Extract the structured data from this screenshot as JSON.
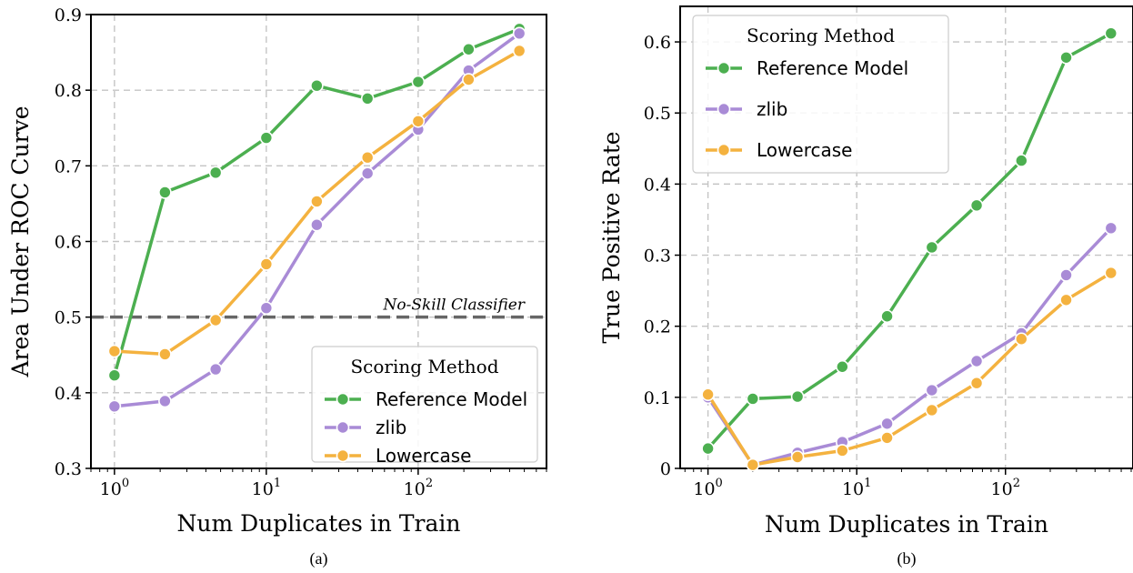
{
  "chart_data": [
    {
      "type": "line",
      "caption": "(a)",
      "xlabel": "Num Duplicates in Train",
      "ylabel": "Area Under ROC Curve",
      "xscale": "log",
      "xlim": [
        0.7,
        700
      ],
      "ylim": [
        0.3,
        0.9
      ],
      "xticks": [
        {
          "value": 1,
          "base": "10",
          "exp": "0"
        },
        {
          "value": 10,
          "base": "10",
          "exp": "1"
        },
        {
          "value": 100,
          "base": "10",
          "exp": "2"
        }
      ],
      "yticks": [
        {
          "value": 0.3,
          "label": "0.3"
        },
        {
          "value": 0.4,
          "label": "0.4"
        },
        {
          "value": 0.5,
          "label": "0.5"
        },
        {
          "value": 0.6,
          "label": "0.6"
        },
        {
          "value": 0.7,
          "label": "0.7"
        },
        {
          "value": 0.8,
          "label": "0.8"
        },
        {
          "value": 0.9,
          "label": "0.9"
        }
      ],
      "grid": true,
      "reference_line": {
        "y": 0.5,
        "label": "No-Skill Classifier",
        "color": "#666666"
      },
      "legend": {
        "title": "Scoring Method",
        "position": "lower-right"
      },
      "x": [
        1,
        2.15,
        4.64,
        10,
        21.5,
        46.4,
        100,
        215,
        464
      ],
      "series": [
        {
          "name": "Reference Model",
          "color": "#4caf50",
          "values": [
            0.423,
            0.665,
            0.691,
            0.737,
            0.806,
            0.789,
            0.811,
            0.854,
            0.881
          ]
        },
        {
          "name": "zlib",
          "color": "#a98bd6",
          "values": [
            0.382,
            0.389,
            0.431,
            0.512,
            0.622,
            0.69,
            0.748,
            0.826,
            0.875
          ]
        },
        {
          "name": "Lowercase",
          "color": "#f4b23f",
          "values": [
            0.455,
            0.451,
            0.496,
            0.57,
            0.653,
            0.711,
            0.759,
            0.814,
            0.852
          ]
        }
      ]
    },
    {
      "type": "line",
      "caption": "(b)",
      "xlabel": "Num Duplicates in Train",
      "ylabel": "True Positive Rate",
      "xscale": "log",
      "xlim": [
        0.65,
        720
      ],
      "ylim": [
        0,
        0.65
      ],
      "xticks": [
        {
          "value": 1,
          "base": "10",
          "exp": "0"
        },
        {
          "value": 10,
          "base": "10",
          "exp": "1"
        },
        {
          "value": 100,
          "base": "10",
          "exp": "2"
        }
      ],
      "yticks": [
        {
          "value": 0,
          "label": "0"
        },
        {
          "value": 0.1,
          "label": "0.1"
        },
        {
          "value": 0.2,
          "label": "0.2"
        },
        {
          "value": 0.3,
          "label": "0.3"
        },
        {
          "value": 0.4,
          "label": "0.4"
        },
        {
          "value": 0.5,
          "label": "0.5"
        },
        {
          "value": 0.6,
          "label": "0.6"
        }
      ],
      "grid": true,
      "legend": {
        "title": "Scoring Method",
        "position": "upper-left"
      },
      "x": [
        1,
        2,
        4,
        8,
        16,
        32,
        64,
        128,
        256,
        512
      ],
      "series": [
        {
          "name": "Reference Model",
          "color": "#4caf50",
          "values": [
            0.028,
            0.098,
            0.101,
            0.143,
            0.214,
            0.311,
            0.37,
            0.433,
            0.578,
            0.612
          ]
        },
        {
          "name": "zlib",
          "color": "#a98bd6",
          "values": [
            0.1,
            0.005,
            0.022,
            0.037,
            0.063,
            0.11,
            0.151,
            0.19,
            0.272,
            0.338
          ]
        },
        {
          "name": "Lowercase",
          "color": "#f4b23f",
          "values": [
            0.104,
            0.005,
            0.016,
            0.025,
            0.043,
            0.082,
            0.12,
            0.182,
            0.237,
            0.275
          ]
        }
      ]
    }
  ]
}
